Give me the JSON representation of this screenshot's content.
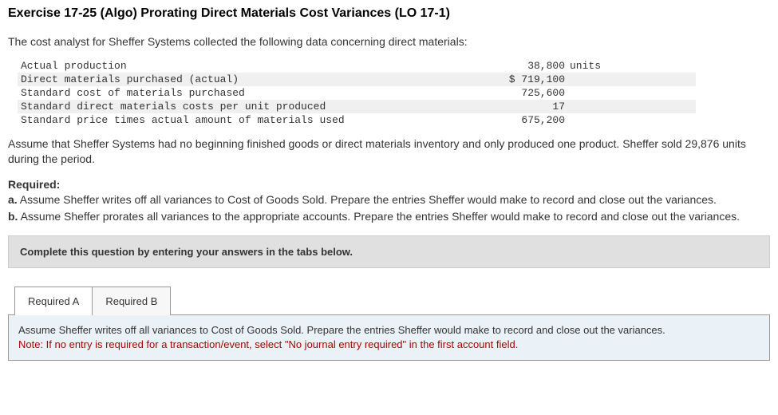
{
  "title": "Exercise 17-25 (Algo) Prorating Direct Materials Cost Variances (LO 17-1)",
  "intro": "The cost analyst for Sheffer Systems collected the following data concerning direct materials:",
  "rows": [
    {
      "label": "Actual production",
      "value": "38,800",
      "unit": "units",
      "alt": false
    },
    {
      "label": "Direct materials purchased (actual)",
      "value": "$ 719,100",
      "unit": "",
      "alt": true
    },
    {
      "label": "Standard cost of materials purchased",
      "value": "725,600",
      "unit": "",
      "alt": false
    },
    {
      "label": "Standard direct materials costs per unit produced",
      "value": "17",
      "unit": "",
      "alt": true
    },
    {
      "label": "Standard price times actual amount of materials used",
      "value": "675,200",
      "unit": "",
      "alt": false
    }
  ],
  "assume": "Assume that Sheffer Systems had no beginning finished goods or direct materials inventory and only produced one product. Sheffer sold 29,876 units during the period.",
  "required_head": "Required:",
  "req_a_letter": "a.",
  "req_a_text": " Assume Sheffer writes off all variances to Cost of Goods Sold. Prepare the entries Sheffer would make to record and close out the variances.",
  "req_b_letter": "b.",
  "req_b_text": " Assume Sheffer prorates all variances to the appropriate accounts. Prepare the entries Sheffer would make to record and close out the variances.",
  "instruction": "Complete this question by entering your answers in the tabs below.",
  "tabs": {
    "a": "Required A",
    "b": "Required B"
  },
  "panel": {
    "text": "Assume Sheffer writes off all variances to Cost of Goods Sold. Prepare the entries Sheffer would make to record and close out the variances.",
    "note": "Note: If no entry is required for a transaction/event, select \"No journal entry required\" in the first account field."
  },
  "colors": {
    "instruction_bg": "#e0e0e0",
    "panel_bg": "#eaf2f8",
    "note_color": "#b00000",
    "alt_row_bg": "#f0f0f0"
  }
}
